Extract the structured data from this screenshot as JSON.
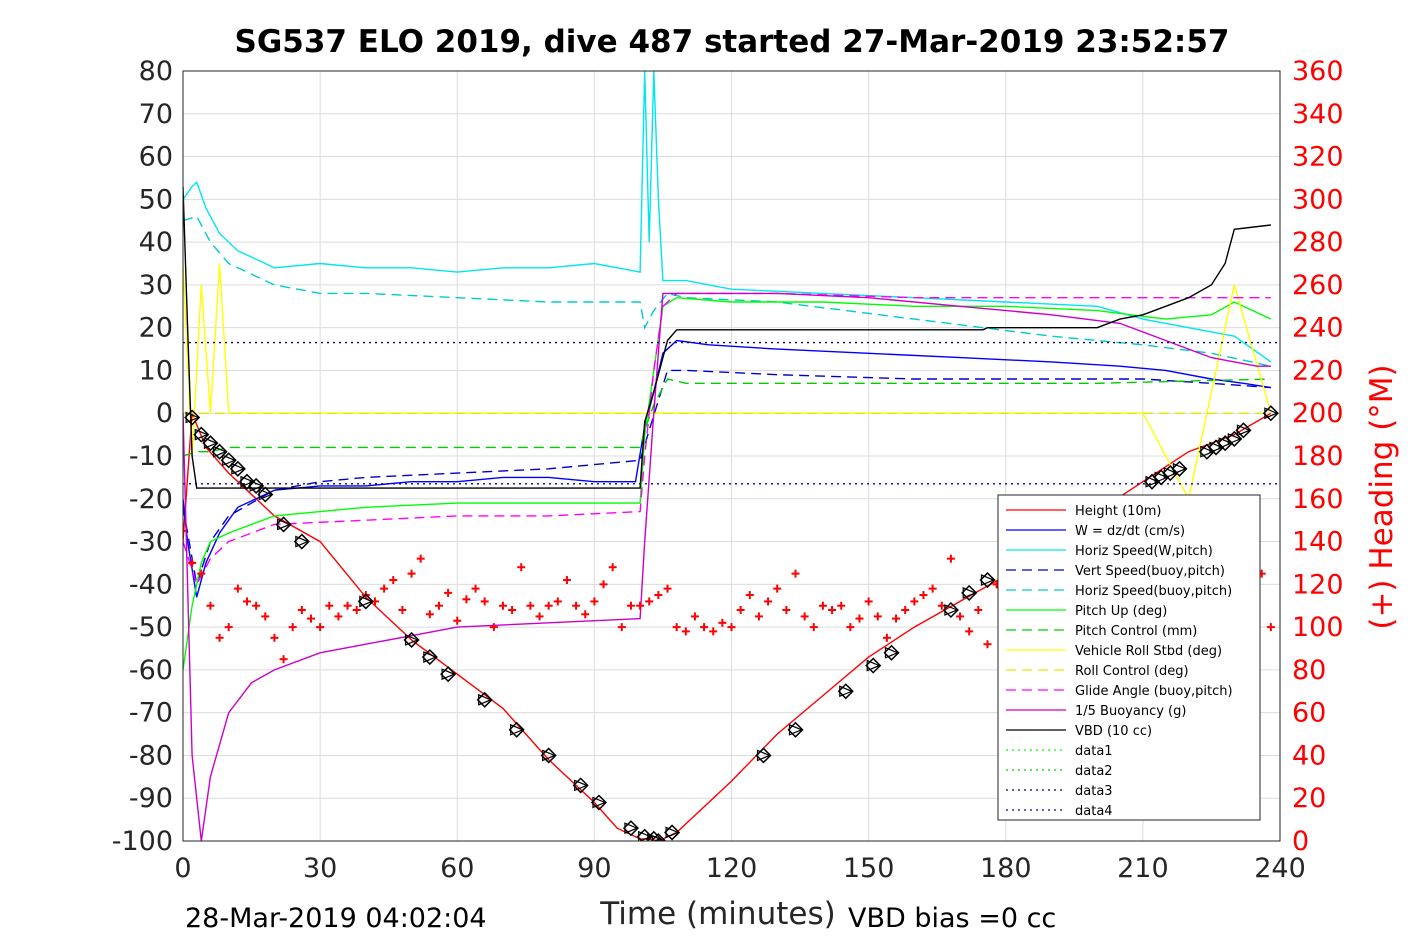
{
  "chart_data": {
    "type": "line",
    "title": "SG537 ELO 2019, dive 487 started 27-Mar-2019 23:52:57",
    "xlabel": "Time (minutes)",
    "ylabel_right": "(+) Heading (°M)",
    "footer_left": "28-Mar-2019 04:02:04",
    "footer_right": "VBD bias =0 cc",
    "xlim": [
      0,
      240
    ],
    "ylim": [
      -100,
      80
    ],
    "ylim_right": [
      0,
      360
    ],
    "x_ticks": [
      0,
      30,
      60,
      90,
      120,
      150,
      180,
      210,
      240
    ],
    "y_ticks": [
      80,
      70,
      60,
      50,
      40,
      30,
      20,
      10,
      0,
      -10,
      -20,
      -30,
      -40,
      -50,
      -60,
      -70,
      -80,
      -90,
      -100
    ],
    "y_ticks_right": [
      360,
      340,
      320,
      300,
      280,
      260,
      240,
      220,
      200,
      180,
      160,
      140,
      120,
      100,
      80,
      60,
      40,
      20,
      0
    ],
    "grid": true,
    "legend_position": "lower-right",
    "colors": {
      "height": "#ff0000",
      "w": "#0000ff",
      "horiz": "#00e5ee",
      "vert_buoy": "#0000cc",
      "horiz_buoy": "#00cccc",
      "pitch": "#00ff00",
      "pitch_ctl": "#00cc00",
      "roll": "#ffff00",
      "roll_ctl": "#e5e500",
      "glide": "#ff00ff",
      "buoyancy": "#cc00cc",
      "vbd": "#000000",
      "data1": "#00ff00",
      "data2": "#00cc00",
      "data3": "#000066",
      "data4": "#0000aa",
      "heading": "#ff0000"
    },
    "series": [
      {
        "name": "Height (10m)",
        "key": "height",
        "style": "solid",
        "x": [
          0,
          2,
          5,
          10,
          20,
          30,
          40,
          50,
          60,
          70,
          80,
          90,
          95,
          100,
          102,
          104,
          106,
          108,
          120,
          130,
          140,
          150,
          160,
          170,
          180,
          190,
          200,
          210,
          220,
          230,
          238
        ],
        "y": [
          -30,
          0,
          -8,
          -14,
          -24,
          -30,
          -43,
          -53,
          -61,
          -69,
          -81,
          -91,
          -97,
          -99.5,
          -99.5,
          -100,
          -99,
          -98,
          -86,
          -75,
          -66,
          -57,
          -50,
          -44,
          -38,
          -30,
          -23,
          -16,
          -9,
          -5,
          0
        ]
      },
      {
        "name": "W = dz/dt (cm/s)",
        "key": "w",
        "style": "solid",
        "x": [
          0,
          1,
          3,
          5,
          8,
          12,
          20,
          30,
          40,
          50,
          60,
          70,
          80,
          90,
          99,
          101,
          103,
          105,
          108,
          115,
          130,
          150,
          170,
          190,
          205,
          215,
          225,
          232,
          238
        ],
        "y": [
          -20,
          -30,
          -43,
          -35,
          -28,
          -22,
          -18,
          -17,
          -17,
          -16,
          -16,
          -15,
          -15,
          -16,
          -16,
          -3,
          5,
          14,
          17,
          16,
          15,
          14,
          13,
          12,
          11,
          10,
          8,
          7,
          6
        ]
      },
      {
        "name": "Horiz Speed(W,pitch)",
        "key": "horiz",
        "style": "solid",
        "x": [
          0,
          2,
          3,
          5,
          8,
          12,
          20,
          30,
          40,
          50,
          60,
          70,
          80,
          90,
          100,
          101,
          102,
          103,
          104,
          105,
          106,
          110,
          120,
          140,
          160,
          180,
          200,
          210,
          220,
          230,
          238
        ],
        "y": [
          50,
          53,
          54,
          48,
          42,
          38,
          34,
          35,
          34,
          34,
          33,
          34,
          34,
          35,
          33,
          80,
          40,
          80,
          50,
          31,
          31,
          31,
          29,
          28,
          27,
          26,
          25,
          22,
          20,
          18,
          12
        ]
      },
      {
        "name": "Vert Speed(buoy,pitch)",
        "key": "vert_buoy",
        "style": "dashed",
        "x": [
          0,
          3,
          6,
          10,
          20,
          30,
          40,
          60,
          80,
          100,
          102,
          104,
          106,
          110,
          130,
          160,
          190,
          210,
          225,
          238
        ],
        "y": [
          -22,
          -40,
          -30,
          -24,
          -18,
          -16,
          -15,
          -14,
          -13,
          -11,
          -4,
          3,
          10,
          10,
          9,
          8,
          8,
          8,
          7,
          6
        ]
      },
      {
        "name": "Horiz Speed(buoy,pitch)",
        "key": "horiz_buoy",
        "style": "dashed",
        "x": [
          0,
          3,
          6,
          10,
          20,
          30,
          40,
          60,
          80,
          100,
          101,
          103,
          106,
          110,
          130,
          160,
          190,
          210,
          225,
          238
        ],
        "y": [
          45,
          46,
          40,
          35,
          30,
          28,
          28,
          27,
          26,
          26,
          20,
          24,
          28,
          27,
          26,
          22,
          18,
          16,
          14,
          11
        ]
      },
      {
        "name": "Pitch Up (deg)",
        "key": "pitch",
        "style": "solid",
        "x": [
          0,
          2,
          4,
          6,
          10,
          15,
          20,
          30,
          40,
          60,
          80,
          100,
          101,
          103,
          105,
          108,
          120,
          140,
          160,
          180,
          200,
          215,
          225,
          230,
          238
        ],
        "y": [
          -60,
          -45,
          -35,
          -30,
          -28,
          -26,
          -24,
          -23,
          -22,
          -21,
          -21,
          -21,
          -5,
          10,
          25,
          27,
          26,
          26,
          25,
          25,
          24,
          22,
          23,
          26,
          22
        ]
      },
      {
        "name": "Pitch Control (mm)",
        "key": "pitch_ctl",
        "style": "dashed",
        "x": [
          0,
          3,
          6,
          10,
          40,
          100,
          101,
          103,
          106,
          110,
          160,
          200,
          238
        ],
        "y": [
          -10,
          -9,
          -9,
          -8,
          -8,
          -8,
          -4,
          2,
          8,
          7,
          7,
          7,
          8
        ]
      },
      {
        "name": "Vehicle Roll Stbd (deg)",
        "key": "roll",
        "style": "solid",
        "x": [
          0,
          2,
          4,
          6,
          8,
          10,
          20,
          30,
          40,
          50,
          60,
          70,
          80,
          90,
          100,
          106,
          110,
          130,
          150,
          170,
          190,
          210,
          220,
          230,
          238
        ],
        "y": [
          35,
          -10,
          30,
          0,
          35,
          0,
          0,
          0,
          0,
          0,
          0,
          0,
          0,
          0,
          0,
          0,
          0,
          0,
          0,
          0,
          0,
          0,
          -20,
          30,
          0
        ]
      },
      {
        "name": "Roll Control (deg)",
        "key": "roll_ctl",
        "style": "dashed",
        "x": [
          0,
          10,
          50,
          100,
          106,
          150,
          200,
          238
        ],
        "y": [
          0,
          0,
          0,
          0,
          0,
          0,
          0,
          0
        ]
      },
      {
        "name": "Glide Angle (buoy,pitch)",
        "key": "glide",
        "style": "dashed",
        "x": [
          0,
          3,
          6,
          10,
          20,
          40,
          60,
          80,
          100,
          101,
          103,
          105,
          108,
          130,
          160,
          190,
          210,
          225,
          238
        ],
        "y": [
          -30,
          -40,
          -34,
          -30,
          -26,
          -25,
          -24,
          -24,
          -23,
          -10,
          10,
          25,
          28,
          28,
          27,
          27,
          27,
          27,
          27
        ]
      },
      {
        "name": "1/5 Buoyancy (g)",
        "key": "buoyancy",
        "style": "solid",
        "x": [
          0,
          2,
          4,
          6,
          10,
          15,
          20,
          30,
          40,
          50,
          60,
          80,
          100,
          101,
          103,
          105,
          110,
          130,
          150,
          170,
          190,
          205,
          215,
          220,
          225,
          230,
          235,
          238
        ],
        "y": [
          0,
          -80,
          -100,
          -85,
          -70,
          -63,
          -60,
          -56,
          -54,
          -52,
          -50,
          -49,
          -48,
          -30,
          0,
          28,
          28,
          28,
          27,
          25,
          23,
          21,
          17,
          15,
          13,
          12,
          11,
          11
        ]
      },
      {
        "name": "VBD (10 cc)",
        "key": "vbd",
        "style": "solid",
        "x": [
          0,
          1,
          2,
          3,
          100,
          101,
          103,
          106,
          108,
          150,
          175,
          176,
          200,
          205,
          210,
          215,
          220,
          225,
          228,
          230,
          238
        ],
        "y": [
          53,
          20,
          -10,
          -17.5,
          -17.5,
          -2,
          5,
          17,
          19.5,
          19.5,
          19.5,
          20,
          20,
          22,
          23,
          25,
          27,
          30,
          35,
          43,
          44
        ]
      },
      {
        "name": "data1",
        "key": "data1",
        "style": "dotted",
        "x": [],
        "y": []
      },
      {
        "name": "data2",
        "key": "data2",
        "style": "dotted",
        "x": [],
        "y": []
      },
      {
        "name": "data3",
        "key": "data3",
        "style": "dotted",
        "x": [
          0,
          240
        ],
        "y": [
          16.5,
          16.5
        ]
      },
      {
        "name": "data4",
        "key": "data4",
        "style": "dotted",
        "x": [
          0,
          240
        ],
        "y": [
          -16.5,
          -16.5
        ]
      }
    ],
    "heading": {
      "axis": "right",
      "marker": "+",
      "x": [
        0,
        2,
        4,
        6,
        8,
        10,
        12,
        14,
        16,
        18,
        20,
        22,
        24,
        26,
        28,
        30,
        32,
        34,
        36,
        38,
        40,
        42,
        44,
        46,
        48,
        50,
        52,
        54,
        56,
        58,
        60,
        62,
        64,
        66,
        68,
        70,
        72,
        74,
        76,
        78,
        80,
        82,
        84,
        86,
        88,
        90,
        92,
        94,
        96,
        98,
        100,
        102,
        104,
        106,
        108,
        110,
        112,
        114,
        116,
        118,
        120,
        122,
        124,
        126,
        128,
        130,
        132,
        134,
        136,
        138,
        140,
        142,
        144,
        146,
        148,
        150,
        152,
        154,
        156,
        158,
        160,
        162,
        164,
        166,
        168,
        170,
        172,
        174,
        176,
        178,
        180,
        182,
        184,
        186,
        188,
        190,
        192,
        194,
        196,
        198,
        200,
        202,
        204,
        206,
        208,
        210,
        212,
        214,
        216,
        218,
        220,
        222,
        224,
        226,
        228,
        230,
        232,
        234,
        236,
        238
      ],
      "y": [
        145,
        130,
        125,
        110,
        95,
        100,
        118,
        112,
        110,
        105,
        95,
        85,
        100,
        108,
        104,
        100,
        110,
        105,
        110,
        108,
        115,
        112,
        118,
        122,
        108,
        125,
        132,
        106,
        110,
        116,
        103,
        113,
        118,
        112,
        100,
        110,
        108,
        128,
        110,
        105,
        110,
        112,
        122,
        110,
        106,
        112,
        120,
        128,
        100,
        110,
        110,
        112,
        115,
        118,
        100,
        98,
        105,
        100,
        98,
        102,
        100,
        108,
        115,
        105,
        112,
        118,
        108,
        125,
        105,
        100,
        110,
        108,
        110,
        100,
        104,
        112,
        105,
        95,
        104,
        108,
        112,
        115,
        118,
        110,
        132,
        105,
        98,
        108,
        92,
        120,
        112,
        100,
        115,
        105,
        118,
        108,
        96,
        112,
        100,
        108,
        112,
        118,
        100,
        110,
        120,
        108,
        110,
        120,
        105,
        115,
        110,
        100,
        118,
        110,
        122,
        108,
        100,
        112,
        125,
        100
      ]
    },
    "depth_markers": {
      "marker": "diamond-triangle",
      "x": [
        2,
        4,
        6,
        8,
        10,
        12,
        14,
        16,
        18,
        22,
        26,
        40,
        50,
        54,
        58,
        66,
        73,
        80,
        87,
        91,
        98,
        101,
        103,
        104,
        107,
        127,
        134,
        145,
        151,
        155,
        168,
        172,
        176,
        212,
        214,
        216,
        218,
        224,
        226,
        228,
        230,
        232,
        238
      ],
      "y": [
        -1,
        -5,
        -7,
        -9,
        -11,
        -13,
        -16,
        -17,
        -19,
        -26,
        -30,
        -44,
        -53,
        -57,
        -61,
        -67,
        -74,
        -80,
        -87,
        -91,
        -97,
        -99,
        -99.5,
        -100,
        -98,
        -80,
        -74,
        -65,
        -59,
        -56,
        -46,
        -42,
        -39,
        -16,
        -15,
        -14,
        -13,
        -9,
        -8,
        -7,
        -6,
        -4,
        0
      ]
    }
  }
}
